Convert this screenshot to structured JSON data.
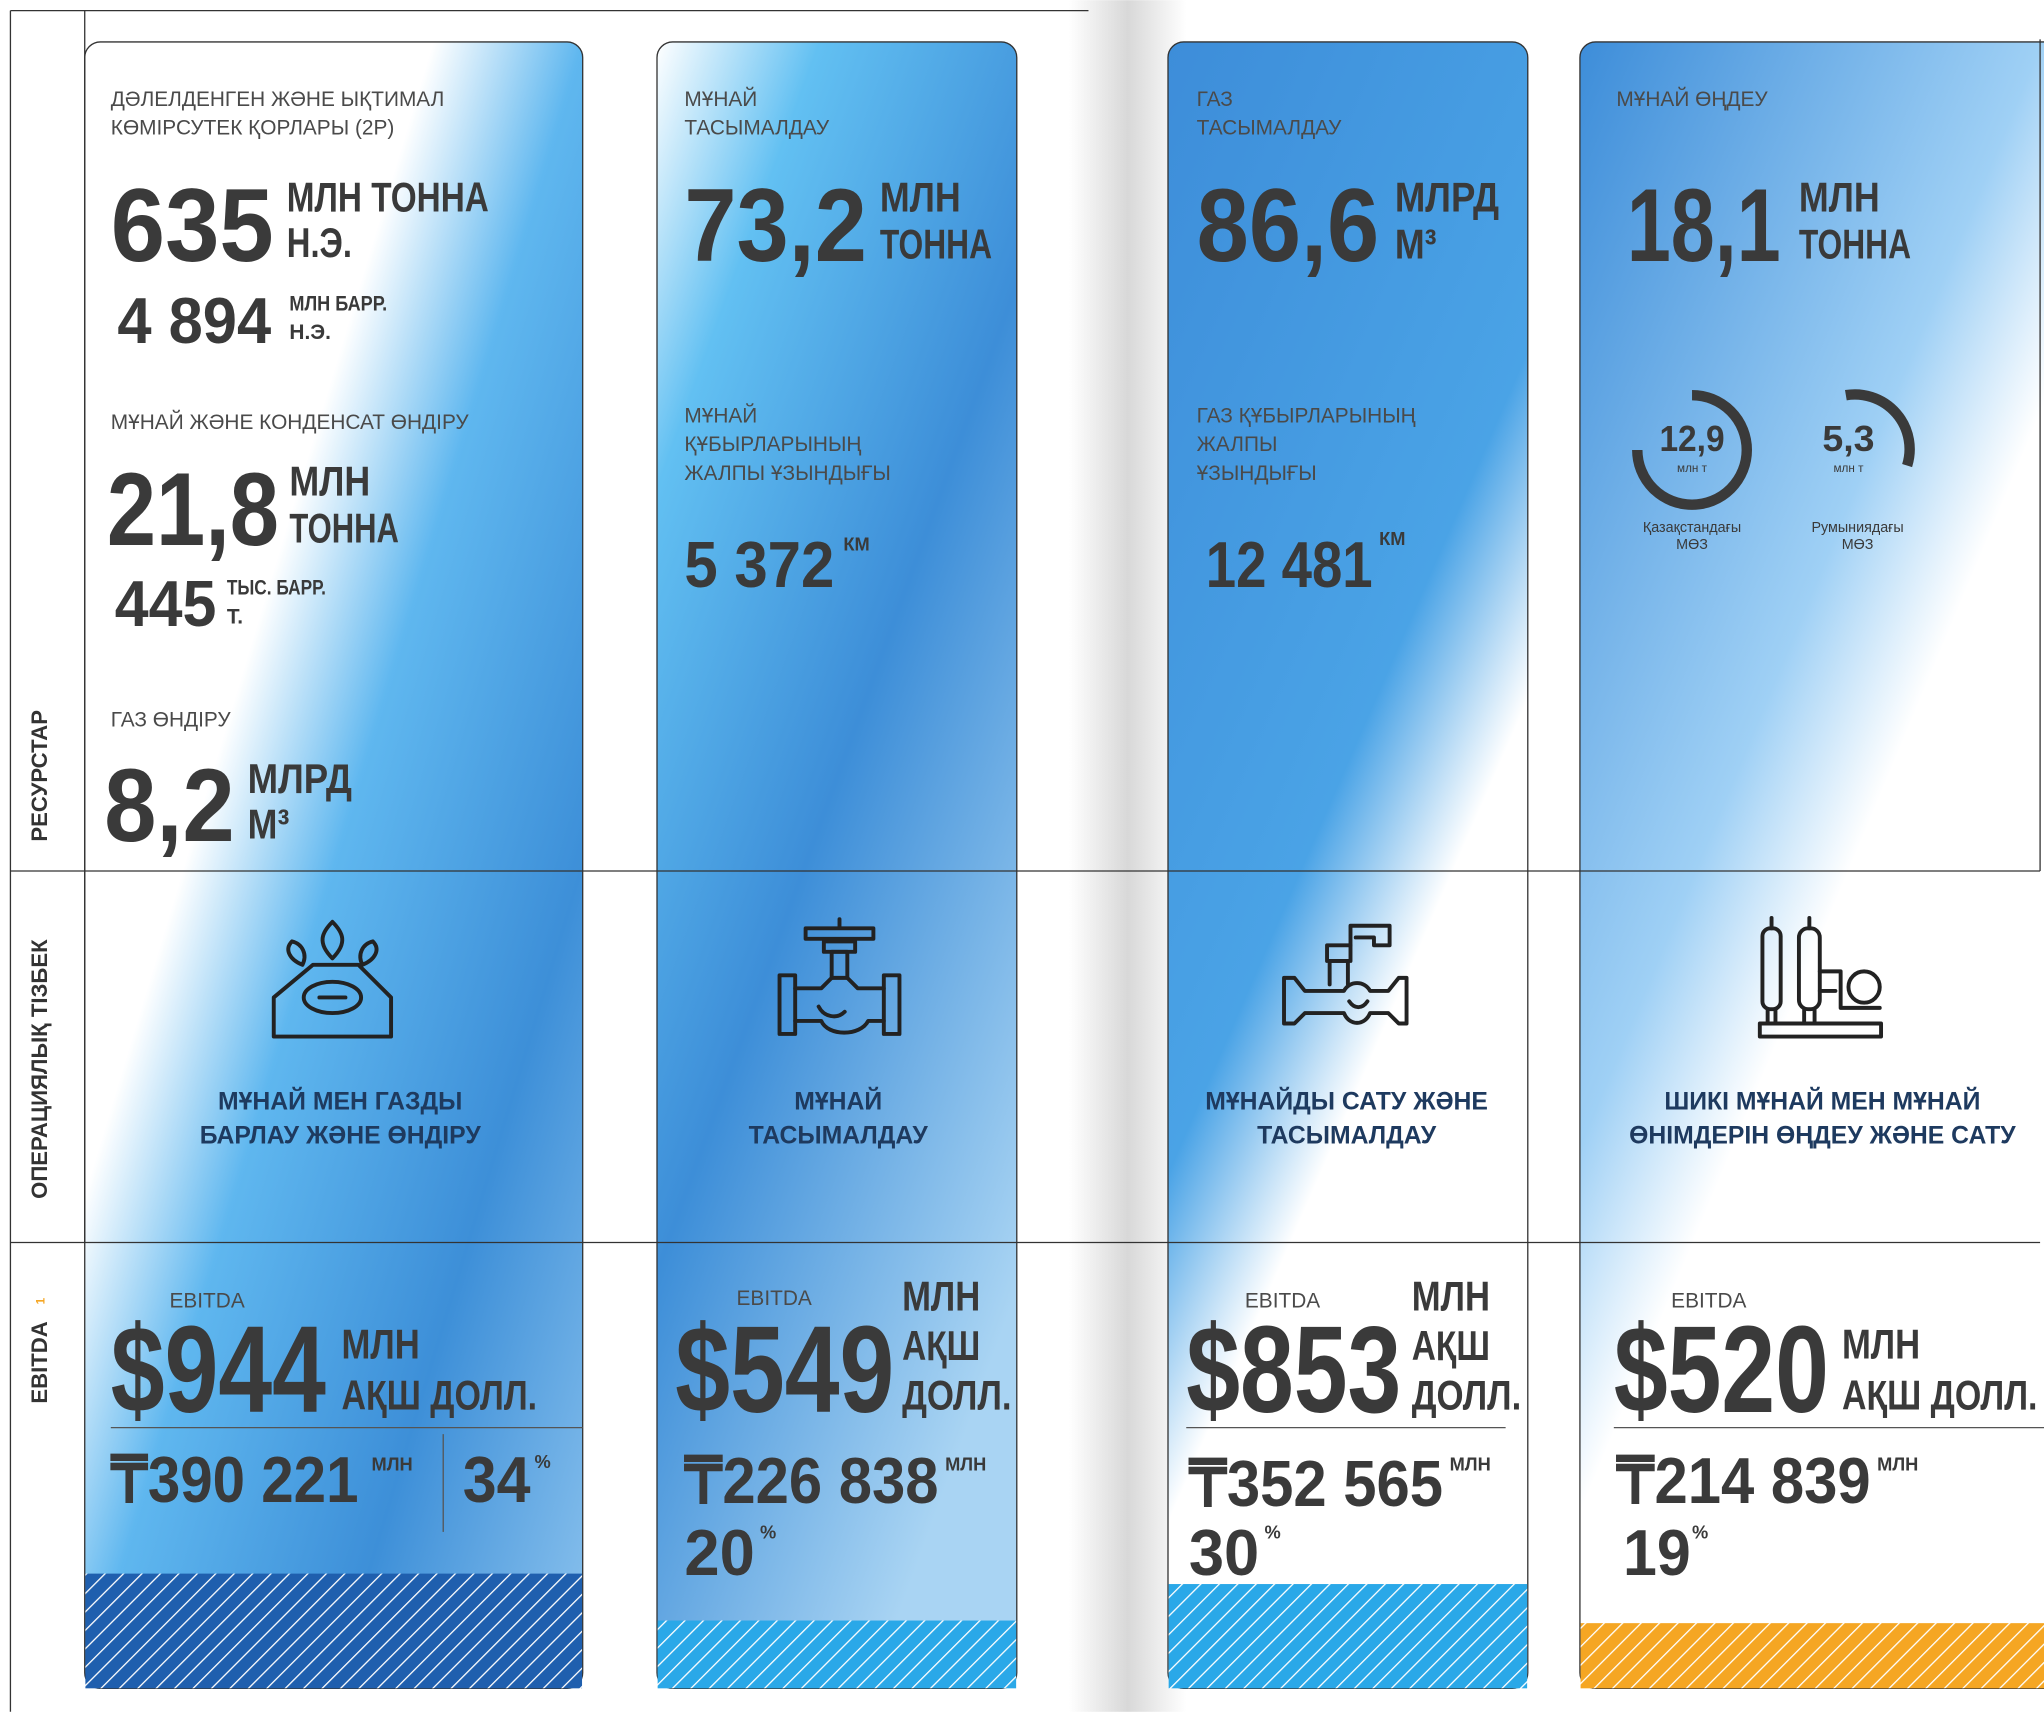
{
  "row_labels": [
    "РЕСУРСТАР",
    "ОПЕРАЦИЯЛЫҚ ТІЗБЕК",
    "EBITDA"
  ],
  "ebitda_footnote": "1",
  "columns": [
    {
      "resources": [
        {
          "label": [
            "ДӘЛЕЛДЕНГЕН ЖӘНЕ ЫҚТИМАЛ",
            "КӨМІРСУТЕК ҚОРЛАРЫ (2P)"
          ],
          "value": "635",
          "unit": [
            "МЛН ТОННА",
            "Н.Э."
          ],
          "sub_value": "4 894",
          "sub_unit": [
            "МЛН БАРР.",
            "Н.Э."
          ]
        },
        {
          "label": [
            "МҰНАЙ ЖӘНЕ КОНДЕНСАТ ӨНДІРУ"
          ],
          "value": "21,8",
          "unit": [
            "МЛН",
            "ТОННА"
          ],
          "sub_value": "445",
          "sub_unit": [
            "ТЫС. БАРР.",
            "Т."
          ]
        },
        {
          "label": [
            "ГАЗ ӨНДІРУ"
          ],
          "value": "8,2",
          "unit": [
            "МЛРД",
            "М³"
          ]
        }
      ],
      "segment": [
        "МҰНАЙ МЕН ГАЗДЫ",
        "БАРЛАУ ЖӘНЕ ӨНДІРУ"
      ],
      "ebitda": {
        "label": "EBITDA",
        "value": "$944",
        "unit": [
          "МЛН",
          "АҚШ ДОЛЛ."
        ],
        "tenge": "₸390 221",
        "tenge_unit": "МЛН",
        "share": "34",
        "share_unit": "%"
      }
    },
    {
      "resources": [
        {
          "label": [
            "МҰНАЙ",
            "ТАСЫМАЛДАУ"
          ],
          "value": "73,2",
          "unit": [
            "МЛН",
            "ТОННА"
          ]
        },
        {
          "label": [
            "МҰНАЙ",
            "ҚҰБЫРЛАРЫНЫҢ",
            "ЖАЛПЫ ҰЗЫНДЫҒЫ"
          ],
          "value": "5 372",
          "unit": [
            "КМ"
          ]
        }
      ],
      "segment": [
        "МҰНАЙ",
        "ТАСЫМАЛДАУ"
      ],
      "ebitda": {
        "label": "EBITDA",
        "value": "$549",
        "unit": [
          "МЛН",
          "АҚШ",
          "ДОЛЛ."
        ],
        "tenge": "₸226 838",
        "tenge_unit": "МЛН",
        "share": "20",
        "share_unit": "%"
      }
    },
    {
      "resources": [
        {
          "label": [
            "ГАЗ",
            "ТАСЫМАЛДАУ"
          ],
          "value": "86,6",
          "unit": [
            "МЛРД",
            "М³"
          ]
        },
        {
          "label": [
            "ГАЗ ҚҰБЫРЛАРЫНЫҢ",
            "ЖАЛПЫ",
            "ҰЗЫНДЫҒЫ"
          ],
          "value": "12 481",
          "unit": [
            "КМ"
          ]
        }
      ],
      "segment": [
        "МҰНАЙДЫ САТУ ЖӘНЕ",
        "ТАСЫМАЛДАУ"
      ],
      "ebitda": {
        "label": "EBITDA",
        "value": "$853",
        "unit": [
          "МЛН",
          "АҚШ",
          "ДОЛЛ."
        ],
        "tenge": "₸352 565",
        "tenge_unit": "МЛН",
        "share": "30",
        "share_unit": "%"
      }
    },
    {
      "resources": [
        {
          "label": [
            "МҰНАЙ ӨҢДЕУ"
          ],
          "value": "18,1",
          "unit": [
            "МЛН",
            "ТОННА"
          ],
          "refineries": [
            {
              "value": "12,9",
              "unit": "млн т",
              "caption": [
                "Қазақстандағы",
                "МӨЗ"
              ]
            },
            {
              "value": "5,3",
              "unit": "млн т",
              "caption": [
                "Румыниядағы",
                "МӨЗ"
              ]
            }
          ]
        }
      ],
      "segment": [
        "ШИКІ МҰНАЙ МЕН МҰНАЙ",
        "ӨНІМДЕРІН ӨҢДЕУ ЖӘНЕ САТУ"
      ],
      "ebitda": {
        "label": "EBITDA",
        "value": "$520",
        "unit": [
          "МЛН",
          "АҚШ ДОЛЛ."
        ],
        "tenge": "₸214 839",
        "tenge_unit": "МЛН",
        "share": "19",
        "share_unit": "%"
      }
    }
  ]
}
